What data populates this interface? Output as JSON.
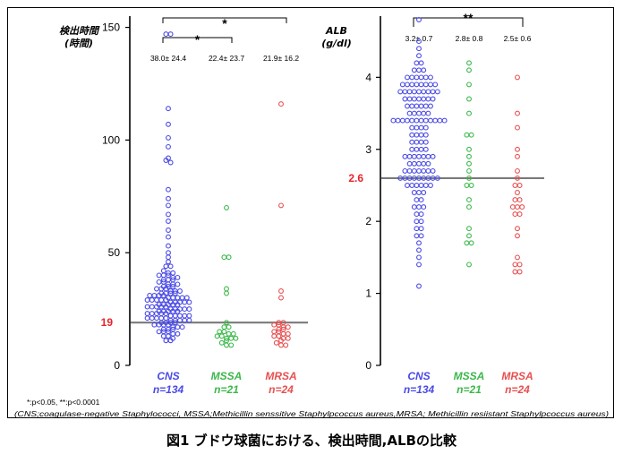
{
  "caption": "図1 ブドウ球菌における、検出時間,ALBの比較",
  "significance_note": "*:p<0.05, **:p<0.0001",
  "abbreviations": "(CNS;coagulase-negative Staphylococci, MSSA;Methicillin senssitive Staphylpcoccus aureus,MRSA; Methicillin resiistant Staphylpcoccus aureus)",
  "colors": {
    "CNS": "#4a4ae6",
    "MSSA": "#3cb84a",
    "MRSA": "#e65050",
    "threshold": "#7a7a7a",
    "threshold_label": "#e8232b"
  },
  "chart_data": [
    {
      "type": "scatter",
      "ylabel": "検出時間\n(時間)",
      "ylim": [
        0,
        155
      ],
      "yticks": [
        0,
        50,
        100,
        150
      ],
      "threshold": {
        "value": 19,
        "label": "19"
      },
      "groups": [
        {
          "name": "CNS",
          "n_label": "n=134",
          "stats": "38.0± 24.4",
          "values": [
            147,
            147,
            114,
            107,
            101,
            97,
            92,
            91,
            90,
            78,
            74,
            71,
            67,
            64,
            60,
            57,
            53,
            50,
            48,
            46,
            44,
            44,
            42,
            41,
            41,
            40,
            40,
            40,
            39,
            39,
            38,
            38,
            38,
            37,
            37,
            36,
            36,
            36,
            35,
            35,
            35,
            34,
            34,
            34,
            33,
            33,
            33,
            32,
            32,
            32,
            32,
            31,
            31,
            31,
            31,
            30,
            30,
            30,
            30,
            30,
            29,
            29,
            29,
            29,
            29,
            28,
            28,
            28,
            28,
            28,
            27,
            27,
            27,
            27,
            27,
            26,
            26,
            26,
            26,
            26,
            25,
            25,
            25,
            25,
            25,
            24,
            24,
            24,
            24,
            24,
            23,
            23,
            23,
            23,
            23,
            22,
            22,
            22,
            22,
            22,
            21,
            21,
            21,
            21,
            21,
            20,
            20,
            20,
            20,
            20,
            19,
            19,
            19,
            19,
            18,
            18,
            18,
            18,
            17,
            17,
            17,
            16,
            16,
            16,
            15,
            15,
            15,
            14,
            14,
            13,
            13,
            12,
            11,
            11
          ]
        },
        {
          "name": "MSSA",
          "n_label": "n=21",
          "stats": "22.4± 23.7",
          "values": [
            70,
            48,
            48,
            34,
            32,
            19,
            17,
            17,
            15,
            15,
            14,
            14,
            13,
            13,
            12,
            12,
            12,
            11,
            10,
            9,
            9
          ]
        },
        {
          "name": "MRSA",
          "n_label": "n=24",
          "stats": "21.9± 16.2",
          "values": [
            116,
            71,
            33,
            30,
            19,
            19,
            18,
            18,
            17,
            17,
            16,
            16,
            15,
            15,
            14,
            14,
            13,
            13,
            12,
            12,
            11,
            10,
            9,
            9
          ]
        }
      ],
      "significance": [
        {
          "from": "CNS",
          "to": "MRSA",
          "mark": "*"
        },
        {
          "from": "CNS",
          "to": "MSSA",
          "mark": "*"
        }
      ]
    },
    {
      "type": "scatter",
      "ylabel": "ALB\n(g/dl)",
      "ylim": [
        0,
        4.85
      ],
      "yticks": [
        0,
        1,
        2,
        3,
        4
      ],
      "threshold": {
        "value": 2.6,
        "label": "2.6"
      },
      "groups": [
        {
          "name": "CNS",
          "n_label": "n=134",
          "stats": "3.2± 0.7",
          "values": [
            4.8,
            4.5,
            4.4,
            4.3,
            4.2,
            4.2,
            4.1,
            4.1,
            4.1,
            4.0,
            4.0,
            4.0,
            4.0,
            4.0,
            4.0,
            3.9,
            3.9,
            3.9,
            3.9,
            3.9,
            3.9,
            3.9,
            3.9,
            3.8,
            3.8,
            3.8,
            3.8,
            3.8,
            3.8,
            3.8,
            3.8,
            3.8,
            3.7,
            3.7,
            3.7,
            3.7,
            3.7,
            3.7,
            3.7,
            3.6,
            3.6,
            3.6,
            3.6,
            3.6,
            3.6,
            3.5,
            3.5,
            3.5,
            3.5,
            3.5,
            3.4,
            3.4,
            3.4,
            3.4,
            3.4,
            3.4,
            3.4,
            3.4,
            3.4,
            3.4,
            3.4,
            3.4,
            3.3,
            3.3,
            3.3,
            3.3,
            3.2,
            3.2,
            3.2,
            3.2,
            3.1,
            3.1,
            3.1,
            3.1,
            3.0,
            3.0,
            3.0,
            3.0,
            2.9,
            2.9,
            2.9,
            2.9,
            2.9,
            2.9,
            2.9,
            2.8,
            2.8,
            2.8,
            2.8,
            2.8,
            2.7,
            2.7,
            2.7,
            2.7,
            2.7,
            2.7,
            2.7,
            2.6,
            2.6,
            2.6,
            2.6,
            2.6,
            2.6,
            2.6,
            2.6,
            2.6,
            2.5,
            2.5,
            2.5,
            2.5,
            2.5,
            2.5,
            2.4,
            2.4,
            2.4,
            2.3,
            2.3,
            2.2,
            2.2,
            2.2,
            2.1,
            2.1,
            2.0,
            2.0,
            1.9,
            1.9,
            1.8,
            1.8,
            1.7,
            1.6,
            1.5,
            1.4,
            1.1
          ]
        },
        {
          "name": "MSSA",
          "n_label": "n=21",
          "stats": "2.8± 0.8",
          "values": [
            4.2,
            4.1,
            3.9,
            3.7,
            3.5,
            3.2,
            3.2,
            3.0,
            2.9,
            2.8,
            2.7,
            2.6,
            2.5,
            2.5,
            2.3,
            2.2,
            1.9,
            1.8,
            1.7,
            1.7,
            1.4
          ]
        },
        {
          "name": "MRSA",
          "n_label": "n=24",
          "stats": "2.5± 0.6",
          "values": [
            4.0,
            3.5,
            3.3,
            3.0,
            2.9,
            2.7,
            2.6,
            2.5,
            2.5,
            2.4,
            2.3,
            2.3,
            2.2,
            2.2,
            2.2,
            2.1,
            2.1,
            1.9,
            1.8,
            1.5,
            1.4,
            1.4,
            1.3,
            1.3
          ]
        }
      ],
      "significance": [
        {
          "from": "CNS",
          "to": "MRSA",
          "mark": "**"
        }
      ]
    }
  ]
}
